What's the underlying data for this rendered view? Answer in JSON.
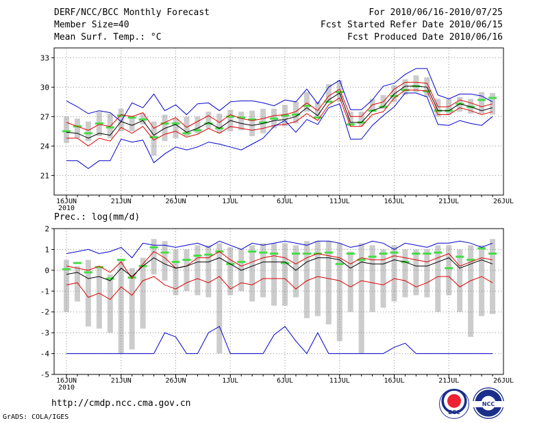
{
  "header": {
    "title": "DERF/NCC/BCC Monthly Forecast",
    "member_size": "Member Size=40",
    "variable": "Mean Surf. Temp.: °C",
    "period": "For 2010/06/16-2010/07/25",
    "fcst_started": "Fcst Started Refer Date 2010/06/15",
    "fcst_produced": "Fcst Produced Date 2010/06/16"
  },
  "footer": {
    "url": "http://cmdp.ncc.cma.gov.cn",
    "credit": "GrADS: COLA/IGES",
    "logo_bcc": "BCC",
    "logo_ncc": "NCC"
  },
  "colors": {
    "envelope": "#0000cc",
    "spread": "#dd0000",
    "mean": "#000000",
    "box": "#cccccc",
    "marker": "#44dd44",
    "grid": "#888888"
  },
  "chart_data": [
    {
      "type": "line",
      "title": "Mean Surf. Temp.: °C",
      "ylim": [
        19,
        34
      ],
      "yticks": [
        "21",
        "24",
        "27",
        "30",
        "33"
      ],
      "xticks": [
        "16JUN",
        "21JUN",
        "26JUN",
        "1JUL",
        "6JUL",
        "11JUL",
        "16JUL",
        "21JUL",
        "26JUL"
      ],
      "xtick_year": "2010",
      "days": 40,
      "series": [
        {
          "name": "max",
          "values": [
            28.6,
            28.0,
            27.3,
            27.6,
            27.4,
            26.5,
            28.4,
            27.9,
            29.3,
            27.6,
            28.2,
            27.2,
            28.3,
            28.4,
            27.6,
            28.5,
            28.6,
            28.6,
            28.4,
            28.1,
            28.7,
            28.5,
            29.8,
            28.3,
            30.0,
            30.7,
            27.7,
            27.7,
            28.7,
            30.1,
            30.4,
            31.3,
            31.9,
            31.9,
            29.2,
            28.8,
            29.3,
            29.3,
            29.1,
            28.5
          ]
        },
        {
          "name": "upper",
          "values": [
            26.4,
            26.0,
            25.6,
            26.2,
            26.0,
            27.2,
            27.0,
            27.4,
            25.8,
            26.4,
            26.9,
            25.9,
            26.5,
            27.1,
            26.4,
            27.2,
            26.8,
            26.6,
            26.8,
            27.1,
            27.2,
            27.5,
            28.4,
            27.6,
            29.1,
            29.8,
            27.0,
            27.0,
            28.2,
            28.5,
            29.8,
            30.5,
            30.5,
            30.4,
            28.0,
            28.0,
            28.7,
            28.4,
            28.0,
            28.3
          ]
        },
        {
          "name": "mean",
          "values": [
            25.4,
            25.3,
            24.8,
            25.3,
            25.1,
            26.5,
            26.1,
            26.6,
            25.1,
            25.8,
            26.2,
            25.4,
            25.8,
            26.4,
            25.8,
            26.6,
            26.3,
            26.1,
            26.3,
            26.6,
            26.7,
            27.0,
            27.9,
            27.1,
            28.7,
            29.4,
            26.4,
            26.4,
            27.6,
            28.0,
            29.3,
            30.1,
            30.1,
            30.0,
            27.6,
            27.6,
            28.3,
            28.0,
            27.6,
            27.9
          ]
        },
        {
          "name": "lower",
          "values": [
            24.8,
            24.8,
            24.0,
            24.8,
            24.5,
            25.9,
            25.3,
            26.0,
            24.6,
            25.2,
            25.5,
            24.9,
            25.2,
            25.8,
            25.3,
            26.0,
            25.8,
            25.6,
            25.8,
            26.1,
            26.2,
            26.5,
            27.3,
            26.6,
            28.2,
            28.9,
            26.0,
            26.0,
            27.2,
            27.5,
            28.9,
            29.7,
            29.7,
            29.6,
            27.2,
            27.2,
            27.9,
            27.6,
            27.2,
            27.5
          ]
        },
        {
          "name": "min",
          "values": [
            22.5,
            22.5,
            21.7,
            22.5,
            22.5,
            24.7,
            24.4,
            24.6,
            22.3,
            23.2,
            23.9,
            23.6,
            23.9,
            24.4,
            24.2,
            23.9,
            23.6,
            24.2,
            24.8,
            26.0,
            26.6,
            25.4,
            26.7,
            26.2,
            27.9,
            28.3,
            24.7,
            24.7,
            26.1,
            27.1,
            28.0,
            29.4,
            29.4,
            29.0,
            26.2,
            26.1,
            26.6,
            26.3,
            26.1,
            27.0
          ]
        }
      ],
      "boxes": [
        [
          24.3,
          27.0
        ],
        [
          24.8,
          26.8
        ],
        [
          24.5,
          26.5
        ],
        [
          25.0,
          27.5
        ],
        [
          24.8,
          27.3
        ],
        [
          25.5,
          27.8
        ],
        [
          25.5,
          27.0
        ],
        [
          26.2,
          27.3
        ],
        [
          23.0,
          26.5
        ],
        [
          24.5,
          27.2
        ],
        [
          24.8,
          26.8
        ],
        [
          25.0,
          27.0
        ],
        [
          25.3,
          27.0
        ],
        [
          25.8,
          27.5
        ],
        [
          25.3,
          27.3
        ],
        [
          25.5,
          27.7
        ],
        [
          25.6,
          27.5
        ],
        [
          25.0,
          27.6
        ],
        [
          25.3,
          27.8
        ],
        [
          25.8,
          27.8
        ],
        [
          26.0,
          28.2
        ],
        [
          26.3,
          28.5
        ],
        [
          27.5,
          29.5
        ],
        [
          27.0,
          28.5
        ],
        [
          28.5,
          30.3
        ],
        [
          28.5,
          30.7
        ],
        [
          26.0,
          27.5
        ],
        [
          26.0,
          27.5
        ],
        [
          27.5,
          28.8
        ],
        [
          27.8,
          29.2
        ],
        [
          28.5,
          30.2
        ],
        [
          29.2,
          30.8
        ],
        [
          29.5,
          31.2
        ],
        [
          29.0,
          31.0
        ],
        [
          27.0,
          28.8
        ],
        [
          27.2,
          28.8
        ],
        [
          27.5,
          29.0
        ],
        [
          27.3,
          28.8
        ],
        [
          27.3,
          29.5
        ],
        [
          27.2,
          29.4
        ]
      ],
      "markers": [
        25.5,
        26.0,
        25.3,
        26.3,
        25.9,
        27.1,
        26.9,
        26.7,
        24.9,
        26.3,
        26.3,
        25.3,
        25.6,
        26.3,
        25.8,
        27.0,
        26.9,
        26.7,
        26.4,
        26.8,
        27.1,
        27.2,
        28.1,
        26.9,
        28.5,
        29.5,
        26.2,
        26.4,
        27.6,
        28.0,
        29.1,
        29.7,
        30.1,
        29.6,
        27.6,
        27.6,
        28.3,
        28.0,
        28.7,
        28.9
      ]
    },
    {
      "type": "line",
      "title": "Prec.: log(mm/d)",
      "ylim": [
        -5,
        2
      ],
      "yticks": [
        "-5",
        "-4",
        "-3",
        "-2",
        "-1",
        "0",
        "1",
        "2"
      ],
      "xticks": [
        "16JUN",
        "21JUN",
        "26JUN",
        "1JUL",
        "6JUL",
        "11JUL",
        "16JUL",
        "21JUL",
        "26JUL"
      ],
      "xtick_year": "2010",
      "days": 40,
      "series": [
        {
          "name": "max",
          "values": [
            0.8,
            0.9,
            1.0,
            0.8,
            0.9,
            1.1,
            0.6,
            1.3,
            1.2,
            1.2,
            1.1,
            1.2,
            1.3,
            1.1,
            1.4,
            1.2,
            1.0,
            1.3,
            1.2,
            1.3,
            1.4,
            1.3,
            1.2,
            1.4,
            1.4,
            1.3,
            1.1,
            1.2,
            1.4,
            1.3,
            1.0,
            1.3,
            1.2,
            1.1,
            1.3,
            1.3,
            1.4,
            1.3,
            1.1,
            1.3
          ]
        },
        {
          "name": "upper",
          "values": [
            0.2,
            0.1,
            0.0,
            0.2,
            -0.1,
            0.4,
            -0.4,
            0.3,
            0.9,
            0.6,
            0.1,
            0.2,
            0.6,
            0.6,
            0.9,
            0.5,
            0.2,
            0.4,
            0.6,
            0.7,
            0.6,
            0.3,
            0.6,
            0.8,
            0.7,
            0.6,
            0.3,
            0.6,
            0.5,
            0.5,
            0.7,
            0.6,
            0.5,
            0.4,
            0.6,
            0.8,
            0.2,
            0.4,
            0.6,
            0.5
          ]
        },
        {
          "name": "mean",
          "values": [
            -0.2,
            -0.1,
            -0.4,
            -0.3,
            -0.5,
            0.1,
            -0.3,
            0.2,
            0.6,
            0.3,
            0.1,
            0.2,
            0.4,
            0.4,
            0.6,
            0.3,
            0.0,
            0.2,
            0.4,
            0.4,
            0.4,
            0.0,
            0.4,
            0.6,
            0.6,
            0.5,
            0.1,
            0.4,
            0.3,
            0.3,
            0.5,
            0.4,
            0.2,
            0.2,
            0.4,
            0.6,
            0.1,
            0.3,
            0.5,
            0.3
          ]
        },
        {
          "name": "lower",
          "values": [
            -0.7,
            -0.6,
            -1.3,
            -1.1,
            -1.4,
            -0.8,
            -1.2,
            -0.5,
            -0.3,
            -0.7,
            -0.9,
            -0.6,
            -0.4,
            -0.6,
            -0.3,
            -0.9,
            -0.6,
            -0.7,
            -0.4,
            -0.4,
            -0.4,
            -0.9,
            -0.5,
            -0.3,
            -0.4,
            -0.5,
            -0.8,
            -0.5,
            -0.6,
            -0.7,
            -0.4,
            -0.5,
            -0.8,
            -0.6,
            -0.3,
            -0.3,
            -0.8,
            -0.5,
            -0.3,
            -0.6
          ]
        },
        {
          "name": "min",
          "values": [
            -4.0,
            -4.0,
            -4.0,
            -4.0,
            -4.0,
            -4.0,
            -4.0,
            -4.0,
            -4.0,
            -3.0,
            -3.2,
            -4.0,
            -4.0,
            -3.0,
            -2.7,
            -4.0,
            -4.0,
            -4.0,
            -4.0,
            -3.1,
            -2.7,
            -3.4,
            -4.0,
            -3.0,
            -4.0,
            -4.0,
            -4.0,
            -4.0,
            -4.0,
            -4.0,
            -3.7,
            -3.5,
            -4.0,
            -4.0,
            -4.0,
            -4.0,
            -4.0,
            -4.0,
            -4.0,
            -4.0
          ]
        }
      ],
      "boxes": [
        [
          -2.0,
          0.5
        ],
        [
          -1.5,
          0.2
        ],
        [
          -2.7,
          0.5
        ],
        [
          -2.8,
          0.1
        ],
        [
          -3.0,
          -0.2
        ],
        [
          -4.0,
          0.5
        ],
        [
          -3.8,
          0.1
        ],
        [
          -2.8,
          0.6
        ],
        [
          -0.2,
          1.5
        ],
        [
          -0.5,
          1.4
        ],
        [
          -1.2,
          1.0
        ],
        [
          -1.0,
          1.0
        ],
        [
          -1.2,
          1.2
        ],
        [
          -1.3,
          1.2
        ],
        [
          -4.0,
          1.3
        ],
        [
          -1.2,
          1.1
        ],
        [
          -1.0,
          1.0
        ],
        [
          -1.5,
          1.2
        ],
        [
          -1.3,
          1.3
        ],
        [
          -1.7,
          1.3
        ],
        [
          -1.7,
          1.3
        ],
        [
          -1.3,
          1.2
        ],
        [
          -2.3,
          1.4
        ],
        [
          -2.2,
          1.4
        ],
        [
          -2.6,
          1.4
        ],
        [
          -3.4,
          1.3
        ],
        [
          -2.0,
          0.9
        ],
        [
          -4.0,
          1.3
        ],
        [
          -2.0,
          1.2
        ],
        [
          -1.8,
          1.0
        ],
        [
          -1.5,
          1.2
        ],
        [
          -1.3,
          1.0
        ],
        [
          -1.2,
          1.0
        ],
        [
          -1.3,
          1.0
        ],
        [
          -2.0,
          1.2
        ],
        [
          -1.2,
          1.2
        ],
        [
          -2.0,
          1.0
        ],
        [
          -3.2,
          1.2
        ],
        [
          -2.2,
          1.2
        ],
        [
          -2.1,
          1.5
        ]
      ],
      "markers": [
        0.05,
        0.35,
        -0.1,
        0.15,
        -0.4,
        0.5,
        -0.35,
        0.2,
        1.1,
        0.85,
        0.4,
        0.5,
        0.7,
        0.75,
        0.9,
        0.3,
        0.4,
        0.9,
        0.85,
        0.8,
        0.35,
        0.8,
        0.8,
        0.8,
        0.85,
        0.3,
        0.8,
        0.5,
        0.65,
        0.8,
        0.85,
        0.4,
        0.8,
        0.8,
        0.85,
        0.1,
        0.65,
        0.5,
        1.05,
        0.8
      ]
    }
  ]
}
